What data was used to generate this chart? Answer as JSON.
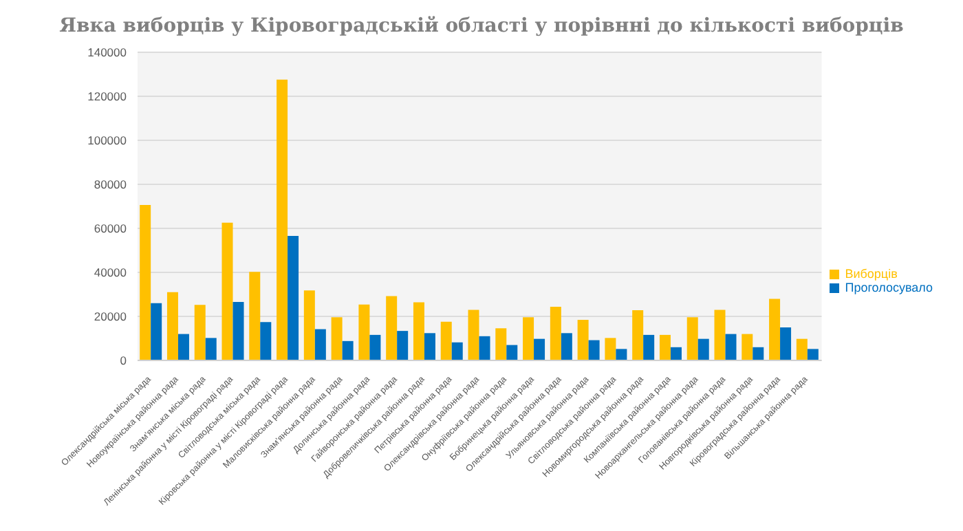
{
  "chart_data": {
    "type": "bar",
    "title": "Явка виборців у Кіровоградській області у порівнні до кількості виборців",
    "categories": [
      "Олександрійська міська рада",
      "Новоукраїнська районна рада",
      "Знам'янська міська рада",
      "Ленінська районна у місті Кіровограді рада",
      "Світловодська міська рада",
      "Кіровська районна у місті Кіровограді рада",
      "Маловисківська районна рада",
      "Знам'янська районна рада",
      "Долинська районна рада",
      "Гайворонська районна рада",
      "Добровеличківська районна рада",
      "Петрівська районна рада",
      "Олександрівська районна рада",
      "Онуфріївська районна рада",
      "Бобринецька районна рада",
      "Олександрійська районна рада",
      "Ульяновська районна рада",
      "Світловодська районна рада",
      "Новомиргородська районна рада",
      "Компаніївська районна рада",
      "Новоархангельська районна рада",
      "Голованівська районна рада",
      "Новгородківська районна рада",
      "Кіровоградська районна рада",
      "Вільшанська районна рада"
    ],
    "series": [
      {
        "name": "Виборців",
        "color": "#ffc000",
        "values": [
          70600,
          31000,
          25200,
          62600,
          40200,
          127600,
          31800,
          19600,
          25400,
          29200,
          26400,
          17600,
          23000,
          14600,
          19600,
          24400,
          18400,
          10200,
          22800,
          11600,
          19600,
          23000,
          12000,
          28000,
          9800
        ]
      },
      {
        "name": "Проголосувало",
        "color": "#0070c0",
        "values": [
          26000,
          12000,
          10200,
          26600,
          17400,
          56600,
          14200,
          8800,
          11600,
          13400,
          12400,
          8200,
          11000,
          7000,
          9800,
          12400,
          9200,
          5200,
          11600,
          6000,
          9800,
          12000,
          6000,
          15000,
          5200
        ]
      }
    ],
    "ylim": [
      0,
      140000
    ],
    "yticks": [
      0,
      20000,
      40000,
      60000,
      80000,
      100000,
      120000,
      140000
    ],
    "grid": "y",
    "legend": "right"
  }
}
